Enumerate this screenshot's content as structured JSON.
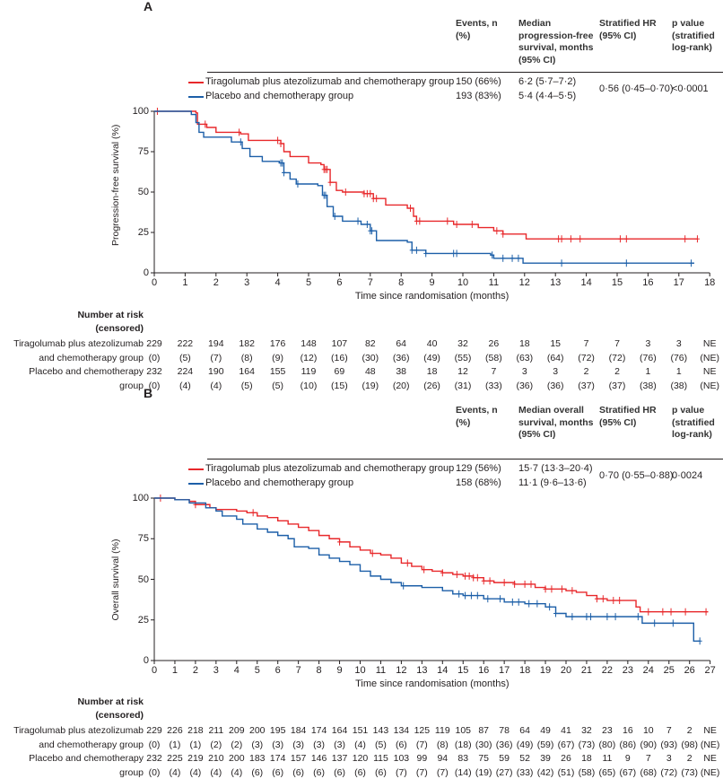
{
  "colors": {
    "tiragolumab": "#e8282b",
    "placebo": "#1c5fa8",
    "axis": "#231f20"
  },
  "chart_data": [
    {
      "panel": "A",
      "type": "line",
      "subtype": "kaplan-meier",
      "ylabel": "Progression-free survival (%)",
      "xlabel": "Time since randomisation (months)",
      "xlim": [
        0,
        18
      ],
      "ylim": [
        0,
        100
      ],
      "xticks": [
        0,
        1,
        2,
        3,
        4,
        5,
        6,
        7,
        8,
        9,
        10,
        11,
        12,
        13,
        14,
        15,
        16,
        17,
        18
      ],
      "yticks": [
        0,
        25,
        50,
        75,
        100
      ],
      "table_headers": [
        "Events, n (%)",
        "Median progression-free survival, months (95% CI)",
        "Stratified HR (95% CI)",
        "p value (stratified log-rank)"
      ],
      "hr": "0·56 (0·45–0·70)",
      "p": "<0·0001",
      "series": [
        {
          "name": "Tiragolumab plus atezolizumab and chemotherapy group",
          "color_key": "tiragolumab",
          "events": "150 (66%)",
          "median": "6·2 (5·7–7·2)",
          "points": [
            [
              0,
              100
            ],
            [
              1.35,
              99
            ],
            [
              1.4,
              92
            ],
            [
              1.7,
              90
            ],
            [
              2,
              87
            ],
            [
              2.8,
              86
            ],
            [
              3.05,
              82
            ],
            [
              4.1,
              80
            ],
            [
              4.2,
              75
            ],
            [
              4.4,
              72
            ],
            [
              5,
              68
            ],
            [
              5.4,
              67
            ],
            [
              5.5,
              64
            ],
            [
              5.7,
              56
            ],
            [
              5.9,
              51
            ],
            [
              6.1,
              50
            ],
            [
              6.8,
              49
            ],
            [
              7.1,
              46
            ],
            [
              7.5,
              42
            ],
            [
              8.2,
              40
            ],
            [
              8.4,
              35
            ],
            [
              8.5,
              32
            ],
            [
              9.6,
              32
            ],
            [
              9.7,
              30
            ],
            [
              10.5,
              28
            ],
            [
              11,
              26
            ],
            [
              11.3,
              24
            ],
            [
              12.05,
              21
            ],
            [
              17.6,
              21
            ]
          ],
          "censored": [
            0.1,
            1.65,
            2.75,
            4.0,
            4.1,
            5.5,
            5.55,
            5.6,
            5.7,
            6.2,
            6.8,
            6.9,
            7.0,
            7.1,
            7.2,
            8.3,
            8.5,
            8.6,
            9.5,
            9.8,
            10.3,
            11.1,
            11.3,
            13.1,
            13.2,
            13.5,
            13.8,
            15.1,
            15.3,
            17.2,
            17.6
          ]
        },
        {
          "name": "Placebo and chemotherapy group",
          "color_key": "placebo",
          "events": "193 (83%)",
          "median": "5·4 (4·4–5·5)",
          "points": [
            [
              0,
              100
            ],
            [
              1.2,
              98
            ],
            [
              1.35,
              93
            ],
            [
              1.45,
              87
            ],
            [
              1.6,
              84
            ],
            [
              2.5,
              81
            ],
            [
              2.85,
              77
            ],
            [
              3.1,
              72
            ],
            [
              3.5,
              69
            ],
            [
              4.05,
              68
            ],
            [
              4.2,
              62
            ],
            [
              4.4,
              58
            ],
            [
              4.6,
              55
            ],
            [
              5.3,
              54
            ],
            [
              5.45,
              48
            ],
            [
              5.6,
              41
            ],
            [
              5.8,
              35
            ],
            [
              6.1,
              32
            ],
            [
              6.7,
              30
            ],
            [
              7.0,
              26
            ],
            [
              7.2,
              20
            ],
            [
              8.2,
              19
            ],
            [
              8.35,
              14
            ],
            [
              8.8,
              12
            ],
            [
              10.9,
              11
            ],
            [
              11.0,
              9
            ],
            [
              11.95,
              6
            ],
            [
              17.5,
              6
            ]
          ],
          "censored": [
            2.8,
            4.1,
            4.15,
            4.2,
            4.65,
            5.5,
            5.55,
            5.85,
            6.6,
            6.9,
            7.0,
            7.05,
            8.35,
            8.5,
            8.8,
            9.7,
            9.8,
            10.95,
            11.3,
            11.6,
            11.8,
            13.2,
            15.3,
            17.4
          ]
        }
      ],
      "at_risk": {
        "title": "Number at risk",
        "subtitle": "(censored)",
        "rows": [
          {
            "label": "Tiragolumab plus atezolizumab",
            "values": [
              "229",
              "222",
              "194",
              "182",
              "176",
              "148",
              "107",
              "82",
              "64",
              "40",
              "32",
              "26",
              "18",
              "15",
              "7",
              "7",
              "3",
              "3",
              "NE"
            ]
          },
          {
            "label": "and chemotherapy group",
            "values": [
              "(0)",
              "(5)",
              "(7)",
              "(8)",
              "(9)",
              "(12)",
              "(16)",
              "(30)",
              "(36)",
              "(49)",
              "(55)",
              "(58)",
              "(63)",
              "(64)",
              "(72)",
              "(72)",
              "(76)",
              "(76)",
              "(NE)"
            ]
          },
          {
            "label": "Placebo and chemotherapy",
            "values": [
              "232",
              "224",
              "190",
              "164",
              "155",
              "119",
              "69",
              "48",
              "38",
              "18",
              "12",
              "7",
              "3",
              "3",
              "2",
              "2",
              "1",
              "1",
              "NE"
            ]
          },
          {
            "label": "group",
            "values": [
              "(0)",
              "(4)",
              "(4)",
              "(5)",
              "(5)",
              "(10)",
              "(15)",
              "(19)",
              "(20)",
              "(26)",
              "(31)",
              "(33)",
              "(36)",
              "(36)",
              "(37)",
              "(37)",
              "(38)",
              "(38)",
              "(NE)"
            ]
          }
        ]
      }
    },
    {
      "panel": "B",
      "type": "line",
      "subtype": "kaplan-meier",
      "ylabel": "Overall survival (%)",
      "xlabel": "Time since randomisation (months)",
      "xlim": [
        0,
        27
      ],
      "ylim": [
        0,
        100
      ],
      "xticks": [
        0,
        1,
        2,
        3,
        4,
        5,
        6,
        7,
        8,
        9,
        10,
        11,
        12,
        13,
        14,
        15,
        16,
        17,
        18,
        19,
        20,
        21,
        22,
        23,
        24,
        25,
        26,
        27
      ],
      "yticks": [
        0,
        25,
        50,
        75,
        100
      ],
      "table_headers": [
        "Events, n (%)",
        "Median overall survival, months (95% CI)",
        "Stratified HR (95% CI)",
        "p value (stratified log-rank)"
      ],
      "hr": "0·70 (0·55–0·88)",
      "p": "0·0024",
      "series": [
        {
          "name": "Tiragolumab plus atezolizumab and chemotherapy group",
          "color_key": "tiragolumab",
          "events": "129 (56%)",
          "median": "15·7 (13·3–20·4)",
          "points": [
            [
              0,
              100
            ],
            [
              1,
              99
            ],
            [
              1.7,
              98
            ],
            [
              2,
              96
            ],
            [
              2.7,
              94
            ],
            [
              3,
              93
            ],
            [
              4,
              92
            ],
            [
              4.5,
              91
            ],
            [
              5,
              89
            ],
            [
              5.5,
              88
            ],
            [
              6,
              86
            ],
            [
              6.5,
              84
            ],
            [
              7,
              82
            ],
            [
              7.5,
              80
            ],
            [
              8,
              77
            ],
            [
              8.5,
              75
            ],
            [
              9,
              73
            ],
            [
              9.5,
              70
            ],
            [
              10,
              68
            ],
            [
              10.5,
              66
            ],
            [
              11,
              65
            ],
            [
              11.5,
              63
            ],
            [
              12,
              60
            ],
            [
              12.5,
              58
            ],
            [
              13,
              56
            ],
            [
              13.5,
              55
            ],
            [
              14,
              54
            ],
            [
              14.5,
              53
            ],
            [
              15,
              52
            ],
            [
              15.5,
              51
            ],
            [
              16,
              49
            ],
            [
              16.5,
              48
            ],
            [
              17.5,
              47
            ],
            [
              18,
              47
            ],
            [
              18.5,
              45
            ],
            [
              19,
              44
            ],
            [
              20,
              43
            ],
            [
              20.5,
              42
            ],
            [
              21,
              40
            ],
            [
              21.5,
              38
            ],
            [
              22,
              37
            ],
            [
              23.3,
              37
            ],
            [
              23.4,
              33
            ],
            [
              23.6,
              30
            ],
            [
              26.9,
              30
            ]
          ],
          "censored": [
            0.3,
            2.0,
            4.8,
            9.0,
            10.6,
            12.3,
            13.1,
            14.0,
            14.7,
            15.1,
            15.3,
            15.5,
            15.7,
            16.0,
            16.3,
            17.0,
            17.5,
            18.0,
            18.3,
            19.0,
            19.3,
            19.8,
            20.3,
            21.5,
            21.8,
            22.3,
            22.6,
            24.0,
            24.7,
            25.1,
            25.8,
            26.8
          ]
        },
        {
          "name": "Placebo and chemotherapy group",
          "color_key": "placebo",
          "events": "158 (68%)",
          "median": "11·1 (9·6–13·6)",
          "points": [
            [
              0,
              100
            ],
            [
              1,
              99
            ],
            [
              1.7,
              97
            ],
            [
              2.5,
              94
            ],
            [
              3,
              92
            ],
            [
              3.3,
              89
            ],
            [
              4,
              87
            ],
            [
              4.3,
              84
            ],
            [
              5,
              81
            ],
            [
              5.5,
              79
            ],
            [
              6,
              77
            ],
            [
              6.5,
              75
            ],
            [
              6.8,
              70
            ],
            [
              7.5,
              69
            ],
            [
              8,
              65
            ],
            [
              8.5,
              63
            ],
            [
              9,
              61
            ],
            [
              9.5,
              59
            ],
            [
              10,
              55
            ],
            [
              10.5,
              52
            ],
            [
              11,
              50
            ],
            [
              11.5,
              48
            ],
            [
              12,
              46
            ],
            [
              13,
              45
            ],
            [
              14,
              43
            ],
            [
              14.5,
              41
            ],
            [
              15,
              40
            ],
            [
              16,
              38
            ],
            [
              17,
              36
            ],
            [
              18,
              35
            ],
            [
              19,
              33
            ],
            [
              19.5,
              29
            ],
            [
              20,
              27
            ],
            [
              23.6,
              27
            ],
            [
              23.7,
              23
            ],
            [
              26.1,
              23
            ],
            [
              26.2,
              12
            ],
            [
              26.5,
              12
            ]
          ],
          "censored": [
            12.1,
            14.8,
            15.1,
            15.4,
            15.7,
            16.2,
            16.8,
            17.4,
            17.7,
            18.2,
            18.6,
            19.2,
            19.5,
            20.3,
            21.0,
            21.2,
            22.0,
            22.4,
            23.5,
            24.3,
            25.2,
            26.5
          ]
        }
      ],
      "at_risk": {
        "title": "Number at risk",
        "subtitle": "(censored)",
        "rows": [
          {
            "label": "Tiragolumab plus atezolizumab",
            "values": [
              "229",
              "226",
              "218",
              "211",
              "209",
              "200",
              "195",
              "184",
              "174",
              "164",
              "151",
              "143",
              "134",
              "125",
              "119",
              "105",
              "87",
              "78",
              "64",
              "49",
              "41",
              "32",
              "23",
              "16",
              "10",
              "7",
              "2",
              "NE"
            ]
          },
          {
            "label": "and chemotherapy group",
            "values": [
              "(0)",
              "(1)",
              "(1)",
              "(2)",
              "(2)",
              "(3)",
              "(3)",
              "(3)",
              "(3)",
              "(3)",
              "(4)",
              "(5)",
              "(6)",
              "(7)",
              "(8)",
              "(18)",
              "(30)",
              "(36)",
              "(49)",
              "(59)",
              "(67)",
              "(73)",
              "(80)",
              "(86)",
              "(90)",
              "(93)",
              "(98)",
              "(NE)"
            ]
          },
          {
            "label": "Placebo and chemotherapy",
            "values": [
              "232",
              "225",
              "219",
              "210",
              "200",
              "183",
              "174",
              "157",
              "146",
              "137",
              "120",
              "115",
              "103",
              "99",
              "94",
              "83",
              "75",
              "59",
              "52",
              "39",
              "26",
              "18",
              "11",
              "9",
              "7",
              "3",
              "2",
              "NE"
            ]
          },
          {
            "label": "group",
            "values": [
              "(0)",
              "(4)",
              "(4)",
              "(4)",
              "(4)",
              "(6)",
              "(6)",
              "(6)",
              "(6)",
              "(6)",
              "(6)",
              "(6)",
              "(7)",
              "(7)",
              "(7)",
              "(14)",
              "(19)",
              "(27)",
              "(33)",
              "(42)",
              "(51)",
              "(58)",
              "(65)",
              "(67)",
              "(68)",
              "(72)",
              "(73)",
              "(NE)"
            ]
          }
        ]
      }
    }
  ]
}
